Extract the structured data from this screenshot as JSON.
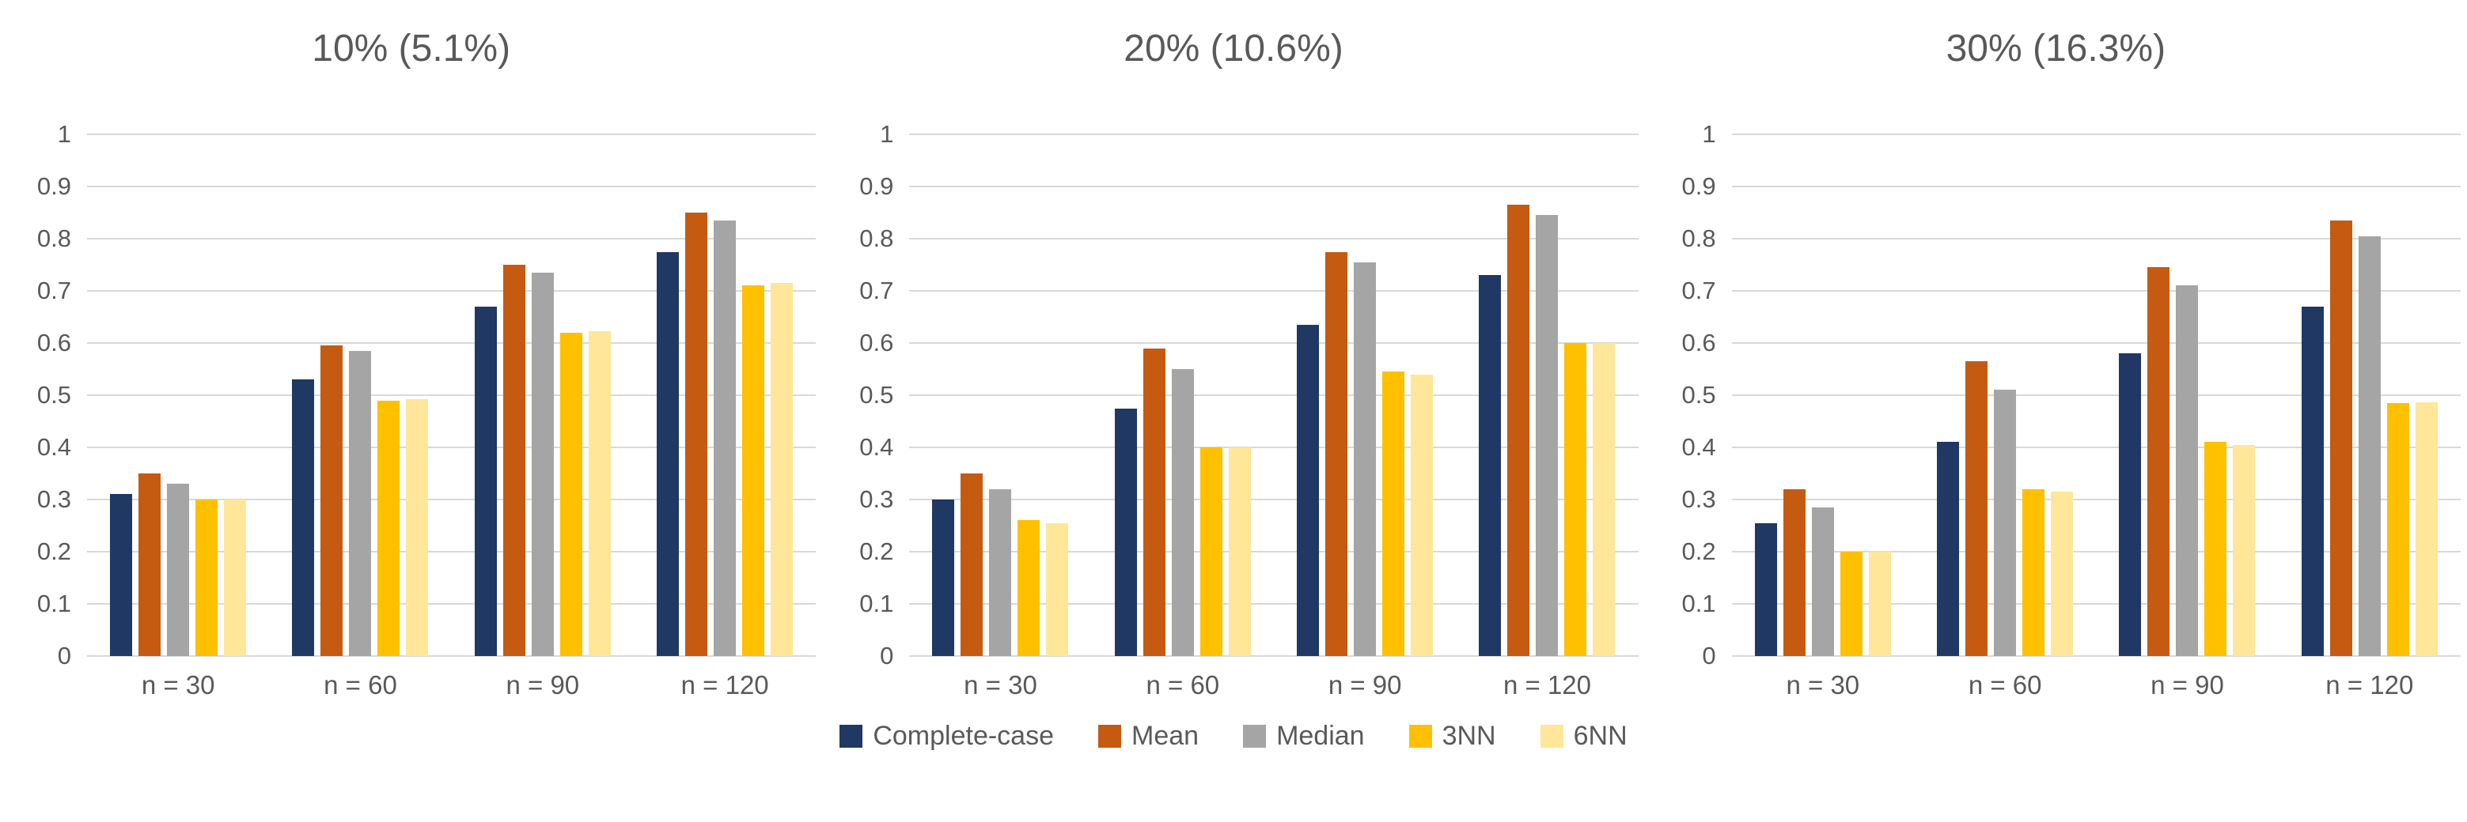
{
  "page": {
    "background": "#ffffff",
    "text_color": "#595959",
    "gridline_color": "#d9d9d9"
  },
  "chart_data": {
    "type": "bar",
    "layout": "three grouped bar charts side by side, shared categories, shared legend bottom-center",
    "grid": true,
    "legend_position": "bottom-center",
    "ylim": [
      0,
      1
    ],
    "ytick_step": 0.1,
    "yticks": [
      "1",
      "0.9",
      "0.8",
      "0.7",
      "0.6",
      "0.5",
      "0.4",
      "0.3",
      "0.2",
      "0.1",
      "0"
    ],
    "categories": [
      "n = 30",
      "n = 60",
      "n = 90",
      "n = 120"
    ],
    "series_names": [
      "Complete-case",
      "Mean",
      "Median",
      "3NN",
      "6NN"
    ],
    "series_colors": [
      "#1F3864",
      "#C55A11",
      "#A5A5A5",
      "#FFC000",
      "#FFE699"
    ],
    "charts": [
      {
        "title": "10% (5.1%)",
        "series": [
          {
            "name": "Complete-case",
            "values": [
              0.31,
              0.53,
              0.67,
              0.775
            ]
          },
          {
            "name": "Mean",
            "values": [
              0.35,
              0.595,
              0.75,
              0.85
            ]
          },
          {
            "name": "Median",
            "values": [
              0.33,
              0.585,
              0.735,
              0.835
            ]
          },
          {
            "name": "3NN",
            "values": [
              0.3,
              0.49,
              0.62,
              0.71
            ]
          },
          {
            "name": "6NN",
            "values": [
              0.3,
              0.492,
              0.622,
              0.715
            ]
          }
        ]
      },
      {
        "title": "20% (10.6%)",
        "series": [
          {
            "name": "Complete-case",
            "values": [
              0.3,
              0.475,
              0.635,
              0.73
            ]
          },
          {
            "name": "Mean",
            "values": [
              0.35,
              0.59,
              0.775,
              0.865
            ]
          },
          {
            "name": "Median",
            "values": [
              0.32,
              0.55,
              0.755,
              0.845
            ]
          },
          {
            "name": "3NN",
            "values": [
              0.26,
              0.4,
              0.545,
              0.6
            ]
          },
          {
            "name": "6NN",
            "values": [
              0.255,
              0.4,
              0.54,
              0.6
            ]
          }
        ]
      },
      {
        "title": "30% (16.3%)",
        "series": [
          {
            "name": "Complete-case",
            "values": [
              0.255,
              0.41,
              0.58,
              0.67
            ]
          },
          {
            "name": "Mean",
            "values": [
              0.32,
              0.565,
              0.745,
              0.835
            ]
          },
          {
            "name": "Median",
            "values": [
              0.285,
              0.51,
              0.71,
              0.805
            ]
          },
          {
            "name": "3NN",
            "values": [
              0.2,
              0.32,
              0.41,
              0.485
            ]
          },
          {
            "name": "6NN",
            "values": [
              0.2,
              0.315,
              0.405,
              0.487
            ]
          }
        ]
      }
    ]
  },
  "legend": {
    "items": [
      {
        "label": "Complete-case",
        "color": "#1F3864"
      },
      {
        "label": "Mean",
        "color": "#C55A11"
      },
      {
        "label": "Median",
        "color": "#A5A5A5"
      },
      {
        "label": "3NN",
        "color": "#FFC000"
      },
      {
        "label": "6NN",
        "color": "#FFE699"
      }
    ]
  }
}
